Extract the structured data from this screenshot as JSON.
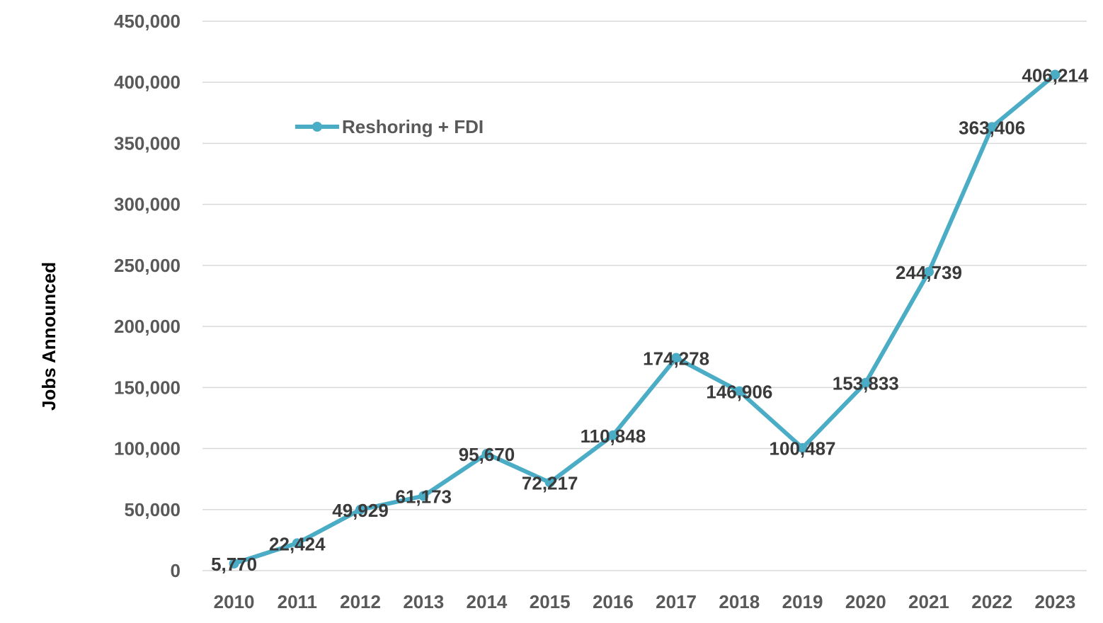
{
  "chart_data": {
    "type": "line",
    "x": [
      "2010",
      "2011",
      "2012",
      "2013",
      "2014",
      "2015",
      "2016",
      "2017",
      "2018",
      "2019",
      "2020",
      "2021",
      "2022",
      "2023"
    ],
    "series": [
      {
        "name": "Reshoring + FDI",
        "values": [
          5770,
          22424,
          49929,
          61173,
          95670,
          72217,
          110848,
          174278,
          146906,
          100487,
          153833,
          244739,
          363406,
          406214
        ],
        "labels": [
          "5,770",
          "22,424",
          "49,929",
          "61,173",
          "95,670",
          "72,217",
          "110,848",
          "174,278",
          "146,906",
          "100,487",
          "153,833",
          "244,739",
          "363,406",
          "406,214"
        ]
      }
    ],
    "y_ticks": [
      0,
      50000,
      100000,
      150000,
      200000,
      250000,
      300000,
      350000,
      400000,
      450000
    ],
    "y_tick_labels": [
      "0",
      "50,000",
      "100,000",
      "150,000",
      "200,000",
      "250,000",
      "300,000",
      "350,000",
      "400,000",
      "450,000"
    ],
    "ylim": [
      0,
      450000
    ],
    "title": "",
    "xlabel": "",
    "ylabel": "Jobs Announced",
    "grid": true,
    "legend_position": "top-left",
    "colors": {
      "line": "#4bacc6",
      "grid": "#d9d9d9",
      "tick_text": "#595959",
      "label_text": "#3a3a3a"
    }
  }
}
